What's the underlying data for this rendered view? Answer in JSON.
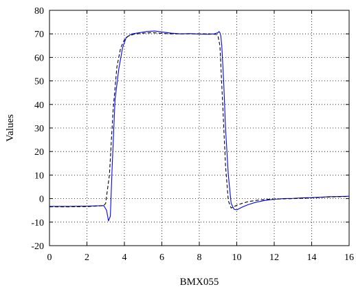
{
  "chart_data": {
    "type": "line",
    "title": "",
    "xlabel": "BMX055",
    "ylabel": "Values",
    "xlim": [
      0,
      16
    ],
    "ylim": [
      -20,
      80
    ],
    "x_ticks": [
      0,
      2,
      4,
      6,
      8,
      10,
      12,
      14,
      16
    ],
    "x_tick_labels": [
      "0",
      "2",
      "4",
      "6",
      "8",
      "10",
      "12",
      "14",
      "16"
    ],
    "y_ticks": [
      -20,
      -10,
      0,
      10,
      20,
      30,
      40,
      50,
      60,
      70,
      80
    ],
    "y_tick_labels": [
      "-20",
      "-10",
      "0",
      "10",
      "20",
      "30",
      "40",
      "50",
      "60",
      "70",
      "80"
    ],
    "grid": true,
    "legend": "none",
    "series": [
      {
        "color": "#0000ff",
        "style": "solid",
        "x": [
          0,
          1,
          2,
          2.9,
          3.05,
          3.15,
          3.25,
          3.35,
          3.5,
          3.7,
          3.9,
          4.1,
          4.4,
          4.8,
          5.2,
          5.6,
          6.0,
          6.5,
          7.0,
          7.5,
          8.0,
          8.5,
          8.8,
          9.0,
          9.05,
          9.1,
          9.15,
          9.2,
          9.3,
          9.4,
          9.55,
          9.7,
          9.85,
          10.0,
          10.3,
          10.6,
          11.0,
          11.5,
          12.0,
          12.5,
          13.0,
          13.5,
          14.0,
          14.5,
          15.0,
          15.5,
          16.0
        ],
        "y": [
          -3.3,
          -3.3,
          -3.2,
          -3.0,
          -5.0,
          -9.5,
          -7.5,
          14,
          42,
          55,
          64,
          68.5,
          70,
          70.5,
          71,
          71.2,
          70.8,
          70.3,
          70,
          70.1,
          69.9,
          69.8,
          70,
          70.5,
          71,
          70.5,
          69,
          65,
          50,
          30,
          10,
          -2,
          -4.5,
          -4.8,
          -3.6,
          -2.6,
          -1.6,
          -0.8,
          -0.3,
          0.0,
          0.1,
          0.3,
          0.4,
          0.6,
          0.8,
          0.9,
          1.0
        ]
      },
      {
        "color": "#000000",
        "style": "dashed",
        "x": [
          0,
          1,
          2,
          2.9,
          3.0,
          3.2,
          3.4,
          3.6,
          3.8,
          4.0,
          4.2,
          4.5,
          5.0,
          5.5,
          6.0,
          6.5,
          7.0,
          7.5,
          8.0,
          8.5,
          8.9,
          9.0,
          9.1,
          9.25,
          9.4,
          9.55,
          9.7,
          9.85,
          10.0,
          10.3,
          10.6,
          11.0,
          11.5,
          12.0,
          12.5,
          13.0,
          13.5,
          14.0,
          14.5,
          15.0,
          15.5,
          16.0
        ],
        "y": [
          -3.5,
          -3.5,
          -3.4,
          -3.0,
          -2.0,
          10,
          38,
          56,
          64,
          67.5,
          69,
          69.8,
          70.3,
          70.5,
          70.2,
          70,
          70,
          70,
          70,
          70,
          69.8,
          69,
          65,
          40,
          14,
          -1,
          -4,
          -3.5,
          -2.8,
          -2.0,
          -1.3,
          -0.8,
          -0.4,
          -0.2,
          -0.1,
          0.0,
          0.1,
          0.3,
          0.5,
          0.7,
          0.8,
          0.9
        ]
      }
    ]
  }
}
